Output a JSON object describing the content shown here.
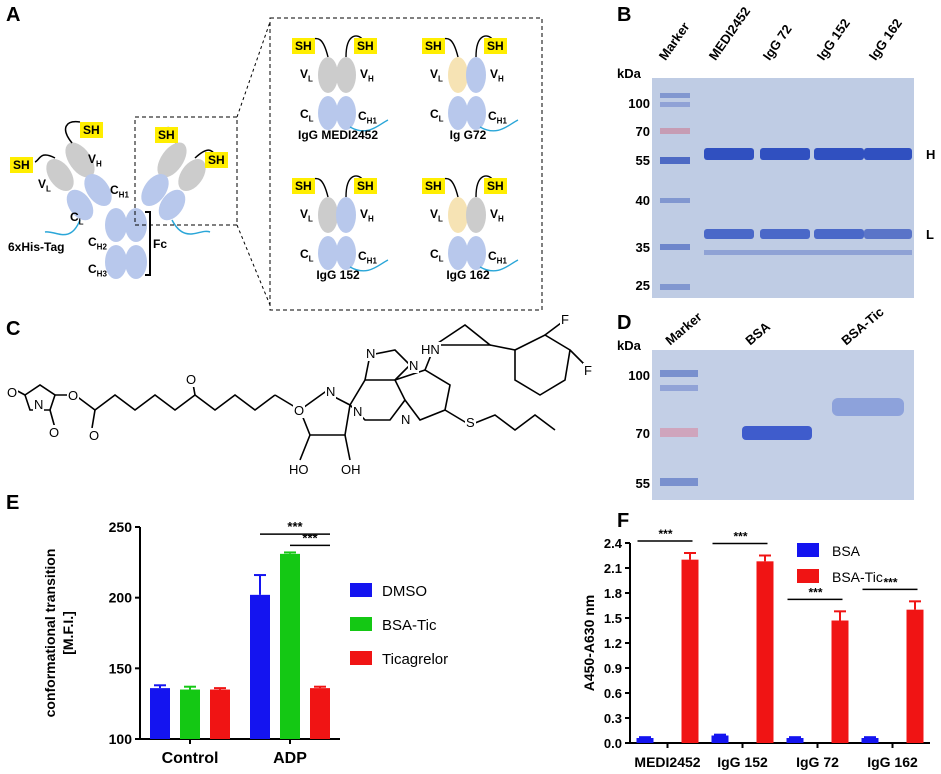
{
  "panels": {
    "A": "A",
    "B": "B",
    "C": "C",
    "D": "D",
    "E": "E",
    "F": "F"
  },
  "panel_a": {
    "sh": "SH",
    "vl": "V",
    "vl_sub": "L",
    "vh": "V",
    "vh_sub": "H",
    "cl": "C",
    "cl_sub": "L",
    "ch1": "C",
    "ch1_sub": "H1",
    "ch2": "C",
    "ch2_sub": "H2",
    "ch3": "C",
    "ch3_sub": "H3",
    "his_tag": "6xHis-Tag",
    "fc": "Fc",
    "variants": [
      "IgG MEDI2452",
      "Ig G72",
      "IgG 152",
      "IgG 162"
    ],
    "variant_vl_colors": [
      "#cccccc",
      "#f6e3b4",
      "#cccccc",
      "#f6e3b4"
    ],
    "variant_vh_colors": [
      "#cccccc",
      "#b8c8ec",
      "#b8c8ec",
      "#cccccc"
    ]
  },
  "panel_b": {
    "kda_label": "kDa",
    "lanes": [
      "Marker",
      "MEDI2452",
      "IgG 72",
      "IgG 152",
      "IgG 162"
    ],
    "marker_kda": [
      "100",
      "70",
      "55",
      "40",
      "35",
      "25"
    ],
    "band_labels": [
      "H",
      "L"
    ]
  },
  "panel_c": {
    "atoms": [
      "N",
      "O",
      "O",
      "O",
      "O",
      "O",
      "O",
      "N",
      "N",
      "N",
      "N",
      "N",
      "HN",
      "S",
      "HO",
      "OH",
      "F",
      "F"
    ]
  },
  "panel_d": {
    "kda_label": "kDa",
    "lanes": [
      "Marker",
      "BSA",
      "BSA-Tic"
    ],
    "marker_kda": [
      "100",
      "70",
      "55"
    ]
  },
  "chart_data": [
    {
      "type": "bar",
      "panel": "E",
      "categories": [
        "Control",
        "ADP"
      ],
      "series": [
        {
          "name": "DMSO",
          "values": [
            136,
            202
          ],
          "errors": [
            2,
            14
          ],
          "color": "#1414f0"
        },
        {
          "name": "BSA-Tic",
          "values": [
            135,
            231
          ],
          "errors": [
            2,
            1
          ],
          "color": "#14c814"
        },
        {
          "name": "Ticagrelor",
          "values": [
            135,
            136
          ],
          "errors": [
            1,
            1
          ],
          "color": "#f01414"
        }
      ],
      "ylabel": "conformational transition\n[M.F.I.]",
      "ylim": [
        100,
        250
      ],
      "yticks": [
        "100",
        "150",
        "200",
        "250"
      ],
      "significance": [
        "***",
        "***"
      ],
      "legend": "right"
    },
    {
      "type": "bar",
      "panel": "F",
      "categories": [
        "MEDI2452",
        "IgG 152",
        "IgG 72",
        "IgG 162"
      ],
      "series": [
        {
          "name": "BSA",
          "values": [
            0.06,
            0.09,
            0.06,
            0.06
          ],
          "errors": [
            0.01,
            0.01,
            0.01,
            0.01
          ],
          "color": "#1414f0"
        },
        {
          "name": "BSA-Tic",
          "values": [
            2.2,
            2.18,
            1.47,
            1.6
          ],
          "errors": [
            0.08,
            0.07,
            0.11,
            0.1
          ],
          "color": "#f01414"
        }
      ],
      "ylabel": "A450-A630 nm",
      "ylim": [
        0,
        2.4
      ],
      "yticks": [
        "0.0",
        "0.3",
        "0.6",
        "0.9",
        "1.2",
        "1.5",
        "1.8",
        "2.1",
        "2.4"
      ],
      "significance": [
        "***",
        "***",
        "***",
        "***"
      ],
      "legend": "top-right"
    }
  ]
}
